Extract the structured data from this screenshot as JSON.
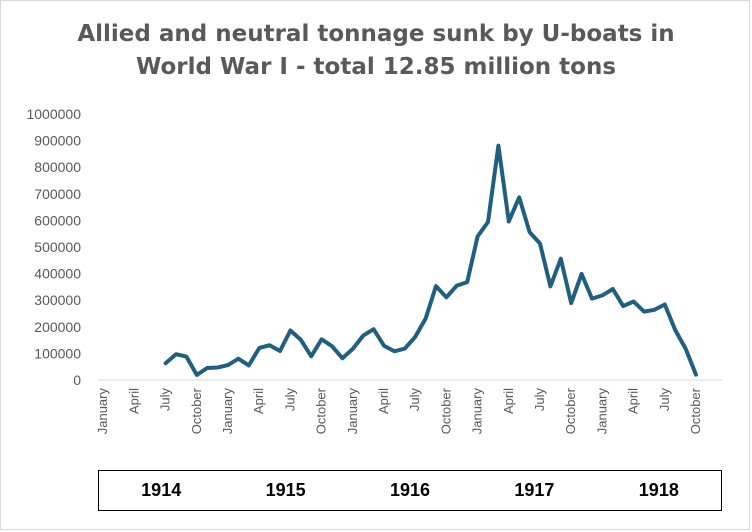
{
  "chart_data": {
    "type": "line",
    "title": "Allied and neutral tonnage sunk by U-boats in",
    "subtitle": "World War I - total 12.85 million tons",
    "ylim": [
      0,
      1000000
    ],
    "yticks": [
      "1000000",
      "900000",
      "800000",
      "700000",
      "600000",
      "500000",
      "400000",
      "300000",
      "200000",
      "100000",
      "0"
    ],
    "x_tick_labels": [
      "January",
      "April",
      "July",
      "October",
      "January",
      "April",
      "July",
      "October",
      "January",
      "April",
      "July",
      "October",
      "January",
      "April",
      "July",
      "October",
      "January",
      "April",
      "July",
      "October"
    ],
    "year_labels": [
      "1914",
      "1915",
      "1916",
      "1917",
      "1918"
    ],
    "grid": false,
    "legend": "none",
    "line_color": "#1f5f7f",
    "series": [
      {
        "start_month_index": 6,
        "values": [
          63000,
          97000,
          88000,
          19000,
          45000,
          47000,
          56000,
          80000,
          55000,
          120000,
          131000,
          109000,
          186000,
          151000,
          89000,
          153000,
          127000,
          82000,
          117000,
          167000,
          191000,
          129000,
          108000,
          118000,
          162000,
          231000,
          353000,
          311000,
          355000,
          368000,
          540000,
          594000,
          881000,
          596000,
          687000,
          556000,
          513000,
          352000,
          456000,
          289000,
          399000,
          306000,
          318000,
          342000,
          278000,
          295000,
          257000,
          264000,
          284000,
          188000,
          118000,
          20000
        ]
      }
    ]
  }
}
